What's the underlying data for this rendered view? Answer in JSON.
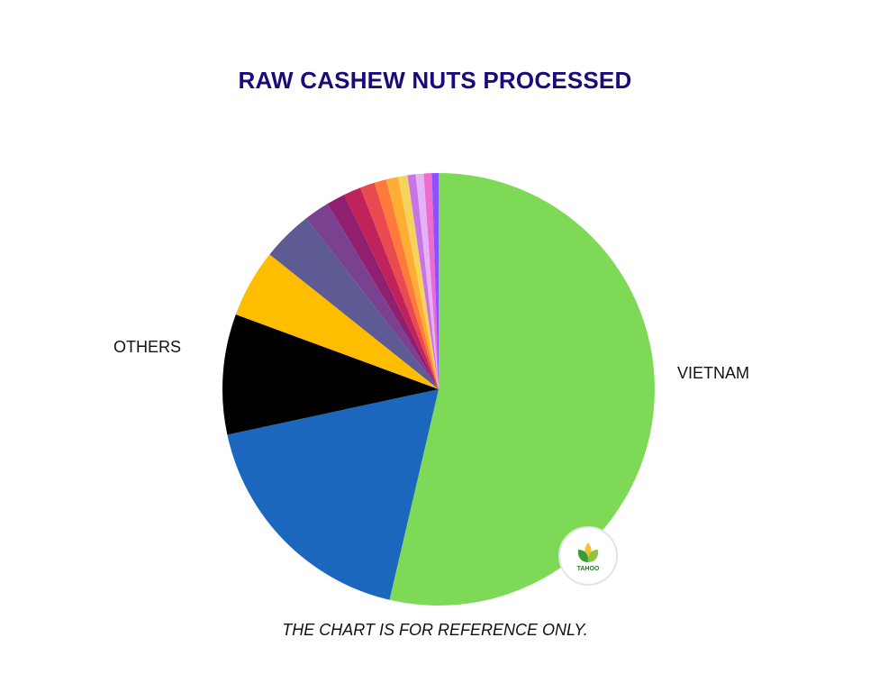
{
  "chart_data": {
    "type": "pie",
    "title": "RAW CASHEW NUTS PROCESSED",
    "footnote": "THE CHART IS FOR REFERENCE ONLY.",
    "start_angle_deg": 0,
    "direction": "clockwise",
    "slices": [
      {
        "label": "VIETNAM",
        "value": 53.7,
        "color": "#7ed957"
      },
      {
        "label": "",
        "value": 18.0,
        "color": "#1b67bd"
      },
      {
        "label": "OTHERS",
        "value": 9.0,
        "color": "#000000"
      },
      {
        "label": "",
        "value": 5.1,
        "color": "#ffbd00"
      },
      {
        "label": "",
        "value": 3.8,
        "color": "#5e5a94"
      },
      {
        "label": "",
        "value": 1.9,
        "color": "#7a4190"
      },
      {
        "label": "",
        "value": 1.4,
        "color": "#911f6f"
      },
      {
        "label": "",
        "value": 1.3,
        "color": "#c0225c"
      },
      {
        "label": "",
        "value": 1.1,
        "color": "#e84a50"
      },
      {
        "label": "",
        "value": 0.9,
        "color": "#ff7a3a"
      },
      {
        "label": "",
        "value": 0.9,
        "color": "#ffad33"
      },
      {
        "label": "",
        "value": 0.7,
        "color": "#f5d45e"
      },
      {
        "label": "",
        "value": 0.6,
        "color": "#c774e8"
      },
      {
        "label": "",
        "value": 0.6,
        "color": "#e3b3f5"
      },
      {
        "label": "",
        "value": 0.6,
        "color": "#ef6bd0"
      },
      {
        "label": "",
        "value": 0.5,
        "color": "#8c52ff"
      }
    ],
    "legend": "none",
    "visible_labels": [
      "VIETNAM",
      "OTHERS"
    ]
  },
  "title": "RAW CASHEW NUTS PROCESSED",
  "labels": {
    "vietnam": "VIETNAM",
    "others": "OTHERS"
  },
  "footnote": "THE CHART IS FOR REFERENCE ONLY.",
  "logo": {
    "text": "TAHOO"
  },
  "colors": {
    "title": "#1a0a7a"
  }
}
